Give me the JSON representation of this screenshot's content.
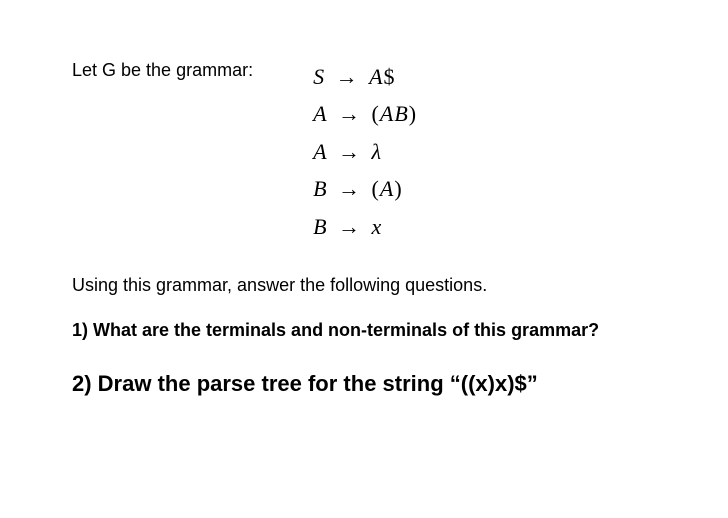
{
  "intro": "Let G be the grammar:",
  "grammar": {
    "rules": [
      {
        "lhs": "S",
        "rhs_html": "<span class='ital'>A</span>$"
      },
      {
        "lhs": "A",
        "rhs_html": "(<span class='ital'>AB</span>)"
      },
      {
        "lhs": "A",
        "rhs_html": "<span class='ital'>λ</span>"
      },
      {
        "lhs": "B",
        "rhs_html": "(<span class='ital'>A</span>)"
      },
      {
        "lhs": "B",
        "rhs_html": "<span class='ital'>x</span>"
      }
    ],
    "arrow": "→"
  },
  "following": "Using this grammar, answer the following questions.",
  "q1": "1) What are the terminals and non-terminals of this grammar?",
  "q2": "2) Draw the parse tree for the string “((x)x)$”",
  "colors": {
    "background": "#ffffff",
    "text": "#000000"
  }
}
